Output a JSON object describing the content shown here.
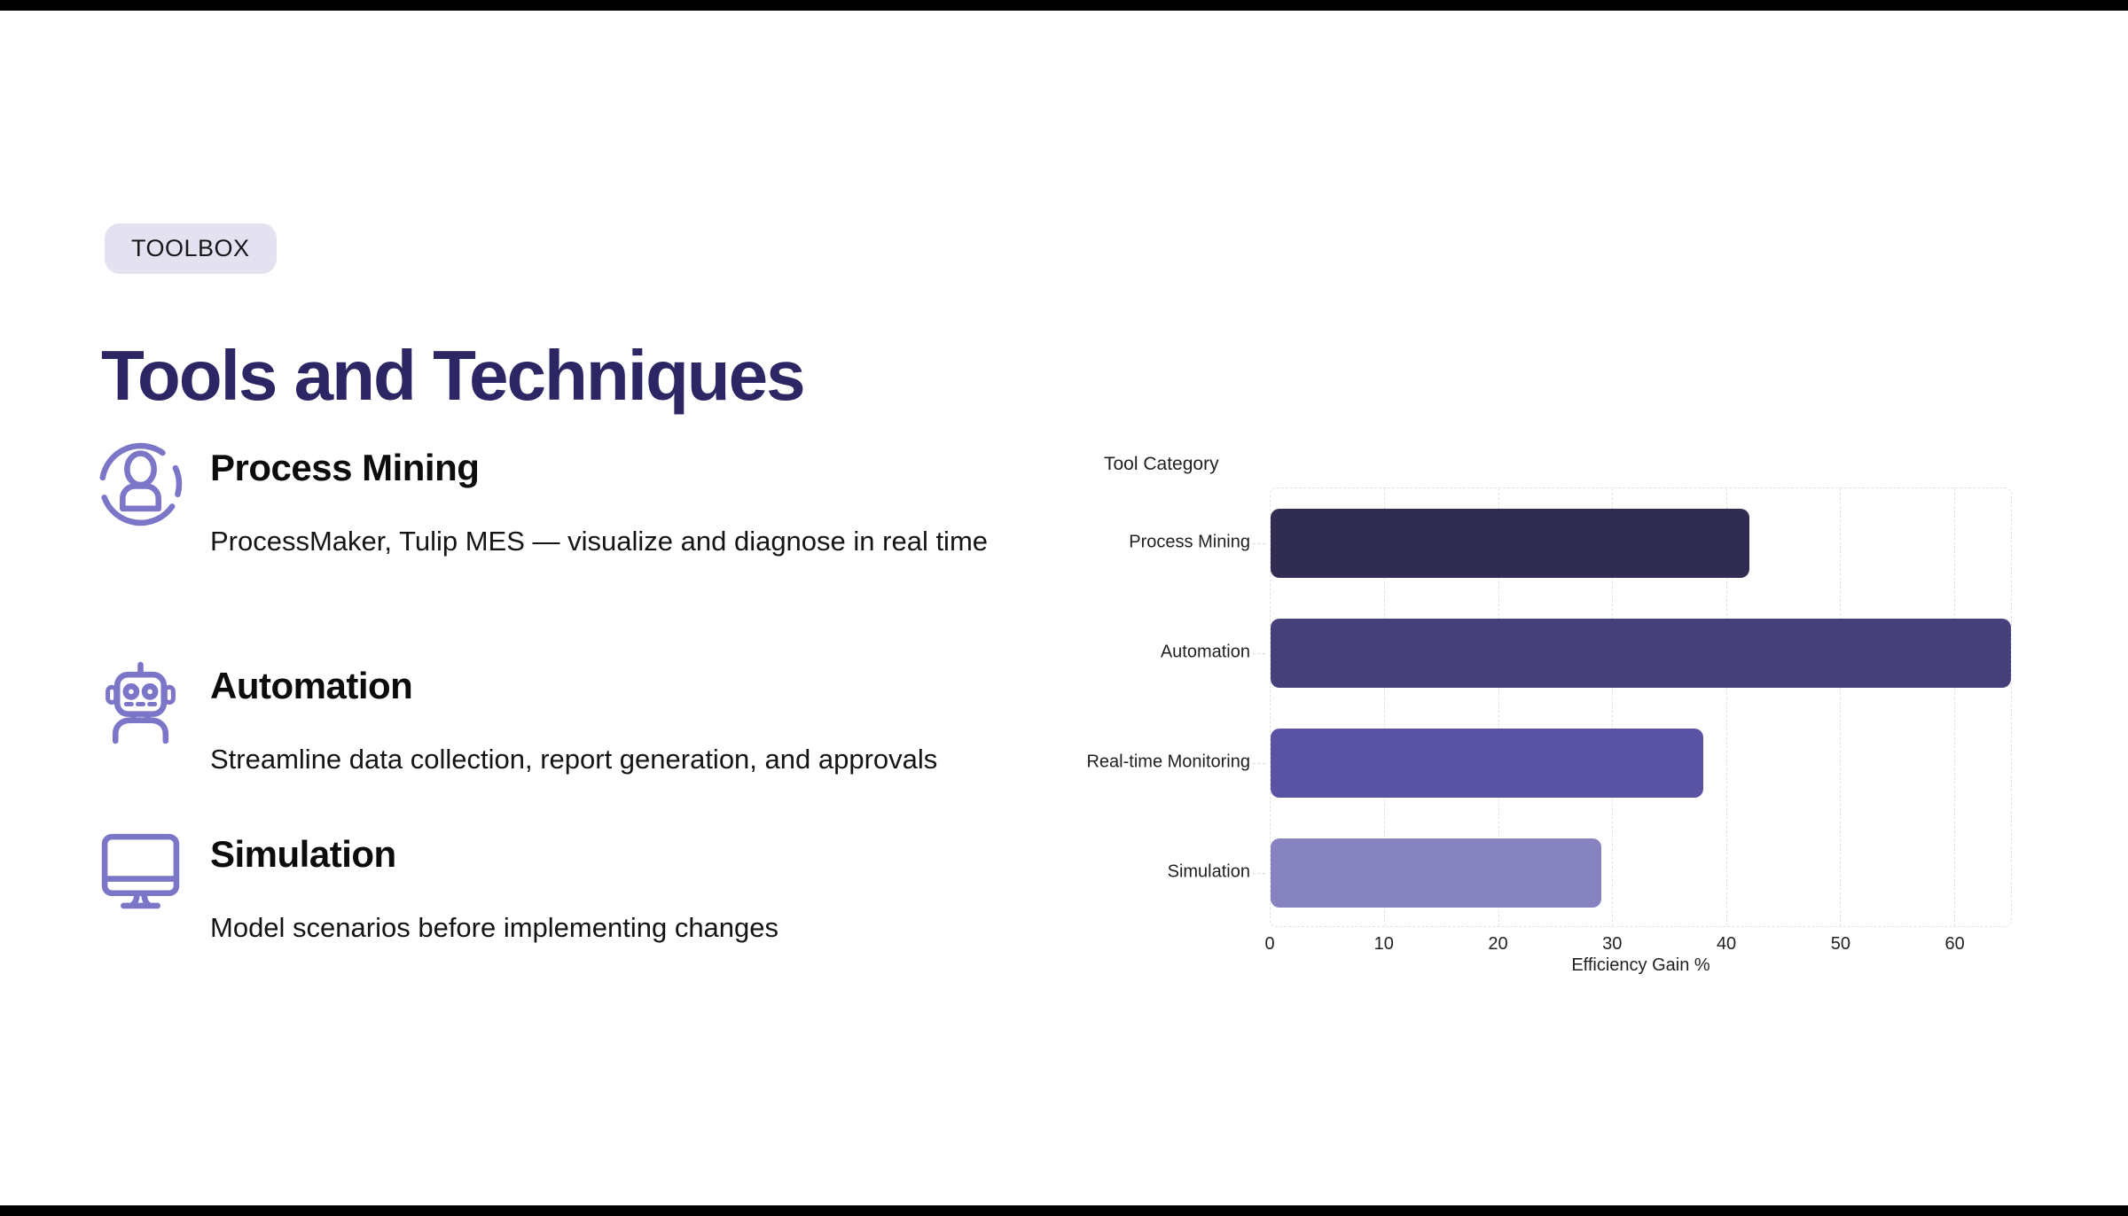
{
  "badge": {
    "label": "TOOLBOX"
  },
  "title": "Tools and Techniques",
  "items": [
    {
      "icon": "user-circle-icon",
      "heading": "Process Mining",
      "body": "ProcessMaker, Tulip MES — visualize and diagnose in real time"
    },
    {
      "icon": "robot-icon",
      "heading": "Automation",
      "body": "Streamline data collection, report generation, and approvals"
    },
    {
      "icon": "monitor-icon",
      "heading": "Simulation",
      "body": "Model scenarios before implementing changes"
    }
  ],
  "chart_data": {
    "type": "bar",
    "orientation": "horizontal",
    "ylabel": "Tool Category",
    "xlabel": "Efficiency Gain %",
    "categories": [
      "Process Mining",
      "Automation",
      "Real-time Monitoring",
      "Simulation"
    ],
    "values": [
      42,
      65,
      38,
      29
    ],
    "bar_colors": [
      "#312d52",
      "#46407a",
      "#5a53a4",
      "#8783c0"
    ],
    "xlim": [
      0,
      65
    ],
    "xticks": [
      0,
      10,
      20,
      30,
      40,
      50,
      60
    ],
    "grid": "vertical-dashed",
    "legend": "none"
  },
  "colors": {
    "accent_icon": "#7c76c8",
    "title_text": "#2d2664",
    "badge_bg": "#e4e2f1",
    "badge_text": "#18181b",
    "body_text": "#141414",
    "chart_text": "#1f1f1f",
    "grid_line": "#e2e2e2",
    "letterbox": "#000000"
  }
}
